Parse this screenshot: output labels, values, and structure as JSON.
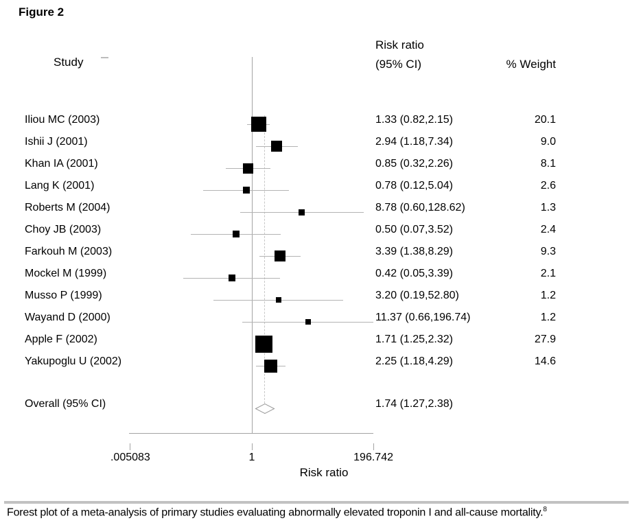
{
  "figure_label": "Figure 2",
  "headers": {
    "study": "Study",
    "risk_ratio_line1": "Risk ratio",
    "risk_ratio_line2": "(95% CI)",
    "weight": "% Weight"
  },
  "chart_data": {
    "type": "forest",
    "x_scale": "log",
    "xlabel": "Risk ratio",
    "xlim": [
      0.005083,
      196.742
    ],
    "null_line_value": 1,
    "x_ticks": [
      {
        "label": ".005083",
        "value": 0.005083
      },
      {
        "label": "1",
        "value": 1
      },
      {
        "label": "196.742",
        "value": 196.742
      }
    ],
    "studies": [
      {
        "label": "Iliou MC (2003)",
        "rr": 1.33,
        "ci_low": 0.82,
        "ci_high": 2.15,
        "weight": 20.1,
        "rr_text": "1.33 (0.82,2.15)",
        "weight_text": "20.1"
      },
      {
        "label": "Ishii J (2001)",
        "rr": 2.94,
        "ci_low": 1.18,
        "ci_high": 7.34,
        "weight": 9.0,
        "rr_text": "2.94 (1.18,7.34)",
        "weight_text": "9.0"
      },
      {
        "label": "Khan IA (2001)",
        "rr": 0.85,
        "ci_low": 0.32,
        "ci_high": 2.26,
        "weight": 8.1,
        "rr_text": "0.85 (0.32,2.26)",
        "weight_text": "8.1"
      },
      {
        "label": "Lang K (2001)",
        "rr": 0.78,
        "ci_low": 0.12,
        "ci_high": 5.04,
        "weight": 2.6,
        "rr_text": "0.78 (0.12,5.04)",
        "weight_text": "2.6"
      },
      {
        "label": "Roberts M (2004)",
        "rr": 8.78,
        "ci_low": 0.6,
        "ci_high": 128.62,
        "weight": 1.3,
        "rr_text": "8.78 (0.60,128.62)",
        "weight_text": "1.3"
      },
      {
        "label": "Choy JB (2003)",
        "rr": 0.5,
        "ci_low": 0.07,
        "ci_high": 3.52,
        "weight": 2.4,
        "rr_text": "0.50 (0.07,3.52)",
        "weight_text": "2.4"
      },
      {
        "label": "Farkouh M (2003)",
        "rr": 3.39,
        "ci_low": 1.38,
        "ci_high": 8.29,
        "weight": 9.3,
        "rr_text": "3.39 (1.38,8.29)",
        "weight_text": "9.3"
      },
      {
        "label": "Mockel M (1999)",
        "rr": 0.42,
        "ci_low": 0.05,
        "ci_high": 3.39,
        "weight": 2.1,
        "rr_text": "0.42 (0.05,3.39)",
        "weight_text": "2.1"
      },
      {
        "label": "Musso P (1999)",
        "rr": 3.2,
        "ci_low": 0.19,
        "ci_high": 52.8,
        "weight": 1.2,
        "rr_text": "3.20 (0.19,52.80)",
        "weight_text": "1.2"
      },
      {
        "label": "Wayand D (2000)",
        "rr": 11.37,
        "ci_low": 0.66,
        "ci_high": 196.74,
        "weight": 1.2,
        "rr_text": "11.37 (0.66,196.74)",
        "weight_text": "1.2"
      },
      {
        "label": "Apple F (2002)",
        "rr": 1.71,
        "ci_low": 1.25,
        "ci_high": 2.32,
        "weight": 27.9,
        "rr_text": "1.71 (1.25,2.32)",
        "weight_text": "27.9"
      },
      {
        "label": "Yakupoglu U (2002)",
        "rr": 2.25,
        "ci_low": 1.18,
        "ci_high": 4.29,
        "weight": 14.6,
        "rr_text": "2.25 (1.18,4.29)",
        "weight_text": "14.6"
      }
    ],
    "overall": {
      "label": "Overall (95% CI)",
      "rr": 1.74,
      "ci_low": 1.27,
      "ci_high": 2.38,
      "rr_text": "1.74 (1.27,2.38)"
    }
  },
  "caption": {
    "text": "Forest plot of a meta-analysis of primary studies evaluating abnormally elevated troponin I and all-cause mortality.",
    "reference": "8"
  },
  "colors": {
    "marker": "#000000",
    "ci_line": "#b3b3b3",
    "null_line": "#a3a3a3",
    "dashed_line": "#c6c6c6",
    "axis_line": "#a3a3a3",
    "diamond_outline": "#999999",
    "diamond_fill": "#ffffff",
    "caption_bar": "#c2c2c2"
  }
}
